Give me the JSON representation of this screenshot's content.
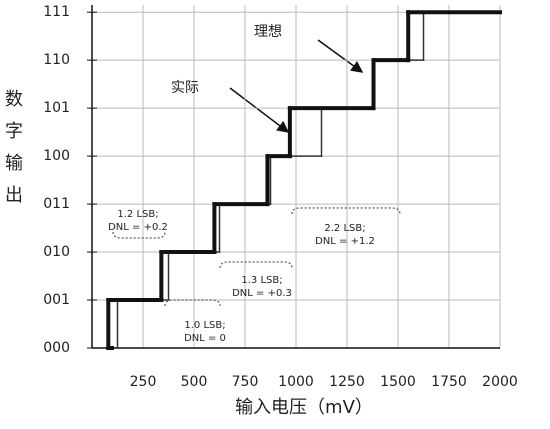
{
  "chart_data": {
    "type": "step",
    "xlabel": "输入电压（mV）",
    "ylabel": [
      "数",
      "字",
      "输",
      "出"
    ],
    "xlim": [
      0,
      2000
    ],
    "xticks": [
      250,
      500,
      750,
      1000,
      1250,
      1500,
      1750,
      2000
    ],
    "ylim": [
      0,
      7.15
    ],
    "yticks": [
      {
        "value": 0,
        "label": "000"
      },
      {
        "value": 1,
        "label": "001"
      },
      {
        "value": 2,
        "label": "010"
      },
      {
        "value": 3,
        "label": "011"
      },
      {
        "value": 4,
        "label": "100"
      },
      {
        "value": 5,
        "label": "101"
      },
      {
        "value": 6,
        "label": "110"
      },
      {
        "value": 7,
        "label": "111"
      }
    ],
    "grid": true,
    "series": [
      {
        "name": "理想",
        "color": "#333333",
        "width": 1.5,
        "transitions": [
          125,
          375,
          625,
          875,
          1125,
          1375,
          1625
        ]
      },
      {
        "name": "实际",
        "color": "#111111",
        "width": 4,
        "transitions": [
          80,
          340,
          600,
          860,
          970,
          1380,
          1550
        ]
      }
    ],
    "annotations": [
      [
        "1.2 LSB;",
        "DNL = +0.2"
      ],
      [
        "1.0 LSB;",
        "DNL = 0"
      ],
      [
        "1.3 LSB;",
        "DNL = +0.3"
      ],
      [
        "2.2 LSB;",
        "DNL = +1.2"
      ]
    ]
  }
}
